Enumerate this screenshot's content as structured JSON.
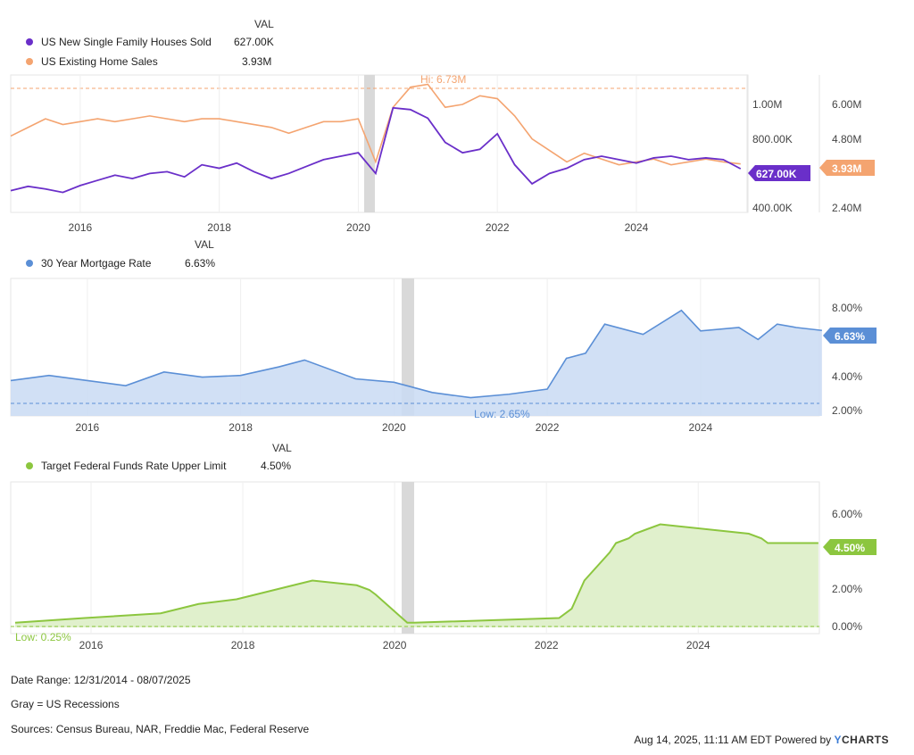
{
  "legend_header": "VAL",
  "panels": [
    {
      "id": "housing",
      "legend": [
        {
          "name": "US New Single Family Houses Sold",
          "value": "627.00K",
          "color": "#6a2fc9"
        },
        {
          "name": "US Existing Home Sales",
          "value": "3.93M",
          "color": "#f4a470"
        }
      ],
      "annotation_hi": "Hi: 6.73M",
      "left_ticks": [
        "1.00M",
        "800.00K",
        "400.00K"
      ],
      "right_ticks": [
        "6.00M",
        "4.80M",
        "2.40M"
      ],
      "badge_left": "627.00K",
      "badge_right": "3.93M"
    },
    {
      "id": "mortgage",
      "legend": [
        {
          "name": "30 Year Mortgage Rate",
          "value": "6.63%",
          "color": "#5b8fd6"
        }
      ],
      "annotation_low": "Low: 2.65%",
      "right_ticks": [
        "8.00%",
        "4.00%",
        "2.00%"
      ],
      "badge": "6.63%"
    },
    {
      "id": "fedfunds",
      "legend": [
        {
          "name": "Target Federal Funds Rate Upper Limit",
          "value": "4.50%",
          "color": "#8cc63f"
        }
      ],
      "annotation_low": "Low: 0.25%",
      "right_ticks": [
        "6.00%",
        "2.00%",
        "0.00%"
      ],
      "badge": "4.50%"
    }
  ],
  "x_ticks": [
    "2016",
    "2018",
    "2020",
    "2022",
    "2024"
  ],
  "footer": {
    "date_range": "Date Range: 12/31/2014 - 08/07/2025",
    "recession_note": "Gray = US Recessions",
    "sources": "Sources: Census Bureau, NAR, Freddie Mac, Federal Reserve",
    "timestamp": "Aug 14, 2025, 11:11 AM EDT Powered by",
    "brand_y": "Y",
    "brand_rest": "CHARTS"
  },
  "chart_data": [
    {
      "type": "line",
      "title": "",
      "x_range": [
        "2014-12",
        "2025-08"
      ],
      "series": [
        {
          "name": "US New Single Family Houses Sold",
          "axis": "left",
          "unit": "K",
          "x": [
            "2015-01",
            "2015-04",
            "2015-07",
            "2015-10",
            "2016-01",
            "2016-04",
            "2016-07",
            "2016-10",
            "2017-01",
            "2017-04",
            "2017-07",
            "2017-10",
            "2018-01",
            "2018-04",
            "2018-07",
            "2018-10",
            "2019-01",
            "2019-04",
            "2019-07",
            "2019-10",
            "2020-01",
            "2020-04",
            "2020-07",
            "2020-10",
            "2021-01",
            "2021-04",
            "2021-07",
            "2021-10",
            "2022-01",
            "2022-04",
            "2022-07",
            "2022-10",
            "2023-01",
            "2023-04",
            "2023-07",
            "2023-10",
            "2024-01",
            "2024-04",
            "2024-07",
            "2024-10",
            "2025-01",
            "2025-04",
            "2025-07"
          ],
          "values": [
            500,
            525,
            510,
            490,
            530,
            560,
            590,
            570,
            600,
            610,
            580,
            650,
            630,
            660,
            610,
            570,
            600,
            640,
            680,
            700,
            720,
            600,
            980,
            970,
            920,
            780,
            720,
            740,
            830,
            650,
            540,
            600,
            630,
            680,
            700,
            680,
            660,
            690,
            700,
            680,
            690,
            680,
            627
          ]
        },
        {
          "name": "US Existing Home Sales",
          "axis": "right",
          "unit": "M",
          "x": [
            "2015-01",
            "2015-04",
            "2015-07",
            "2015-10",
            "2016-01",
            "2016-04",
            "2016-07",
            "2016-10",
            "2017-01",
            "2017-04",
            "2017-07",
            "2017-10",
            "2018-01",
            "2018-04",
            "2018-07",
            "2018-10",
            "2019-01",
            "2019-04",
            "2019-07",
            "2019-10",
            "2020-01",
            "2020-04",
            "2020-07",
            "2020-10",
            "2021-01",
            "2021-04",
            "2021-07",
            "2021-10",
            "2022-01",
            "2022-04",
            "2022-07",
            "2022-10",
            "2023-01",
            "2023-04",
            "2023-07",
            "2023-10",
            "2024-01",
            "2024-04",
            "2024-07",
            "2024-10",
            "2025-01",
            "2025-04",
            "2025-07"
          ],
          "values": [
            4.9,
            5.2,
            5.5,
            5.3,
            5.4,
            5.5,
            5.4,
            5.5,
            5.6,
            5.5,
            5.4,
            5.5,
            5.5,
            5.4,
            5.3,
            5.2,
            5.0,
            5.2,
            5.4,
            5.4,
            5.5,
            4.0,
            5.9,
            6.6,
            6.7,
            5.9,
            6.0,
            6.3,
            6.2,
            5.6,
            4.8,
            4.4,
            4.0,
            4.3,
            4.1,
            3.9,
            4.0,
            4.1,
            3.9,
            4.0,
            4.1,
            4.0,
            3.93
          ]
        }
      ],
      "annotations": [
        "Hi: 6.73M"
      ],
      "recessions": [
        [
          "2020-02",
          "2020-04"
        ]
      ]
    },
    {
      "type": "area",
      "series": [
        {
          "name": "30 Year Mortgage Rate",
          "unit": "%",
          "x": [
            "2015-01",
            "2015-07",
            "2016-01",
            "2016-07",
            "2017-01",
            "2017-07",
            "2018-01",
            "2018-07",
            "2018-11",
            "2019-07",
            "2020-01",
            "2020-07",
            "2021-01",
            "2021-07",
            "2022-01",
            "2022-04",
            "2022-07",
            "2022-10",
            "2023-04",
            "2023-10",
            "2024-01",
            "2024-07",
            "2024-10",
            "2025-01",
            "2025-04",
            "2025-08"
          ],
          "values": [
            3.7,
            4.0,
            3.7,
            3.4,
            4.2,
            3.9,
            4.0,
            4.5,
            4.9,
            3.8,
            3.6,
            3.0,
            2.7,
            2.9,
            3.2,
            5.0,
            5.3,
            7.0,
            6.4,
            7.8,
            6.6,
            6.8,
            6.1,
            7.0,
            6.8,
            6.63
          ]
        }
      ],
      "annotations": [
        "Low: 2.65%"
      ],
      "recessions": [
        [
          "2020-02",
          "2020-04"
        ]
      ]
    },
    {
      "type": "area",
      "series": [
        {
          "name": "Target Federal Funds Rate Upper Limit",
          "unit": "%",
          "x": [
            "2015-01",
            "2015-12",
            "2016-12",
            "2017-03",
            "2017-06",
            "2017-12",
            "2018-03",
            "2018-06",
            "2018-09",
            "2018-12",
            "2019-07",
            "2019-09",
            "2019-10",
            "2020-03",
            "2020-04",
            "2022-03",
            "2022-05",
            "2022-06",
            "2022-07",
            "2022-09",
            "2022-11",
            "2022-12",
            "2023-02",
            "2023-03",
            "2023-05",
            "2023-07",
            "2024-09",
            "2024-11",
            "2024-12",
            "2025-08"
          ],
          "values": [
            0.25,
            0.5,
            0.75,
            1.0,
            1.25,
            1.5,
            1.75,
            2.0,
            2.25,
            2.5,
            2.25,
            2.0,
            1.75,
            0.25,
            0.25,
            0.5,
            1.0,
            1.75,
            2.5,
            3.25,
            4.0,
            4.5,
            4.75,
            5.0,
            5.25,
            5.5,
            5.0,
            4.75,
            4.5,
            4.5
          ]
        }
      ],
      "annotations": [
        "Low: 0.25%"
      ],
      "recessions": [
        [
          "2020-02",
          "2020-04"
        ]
      ]
    }
  ]
}
